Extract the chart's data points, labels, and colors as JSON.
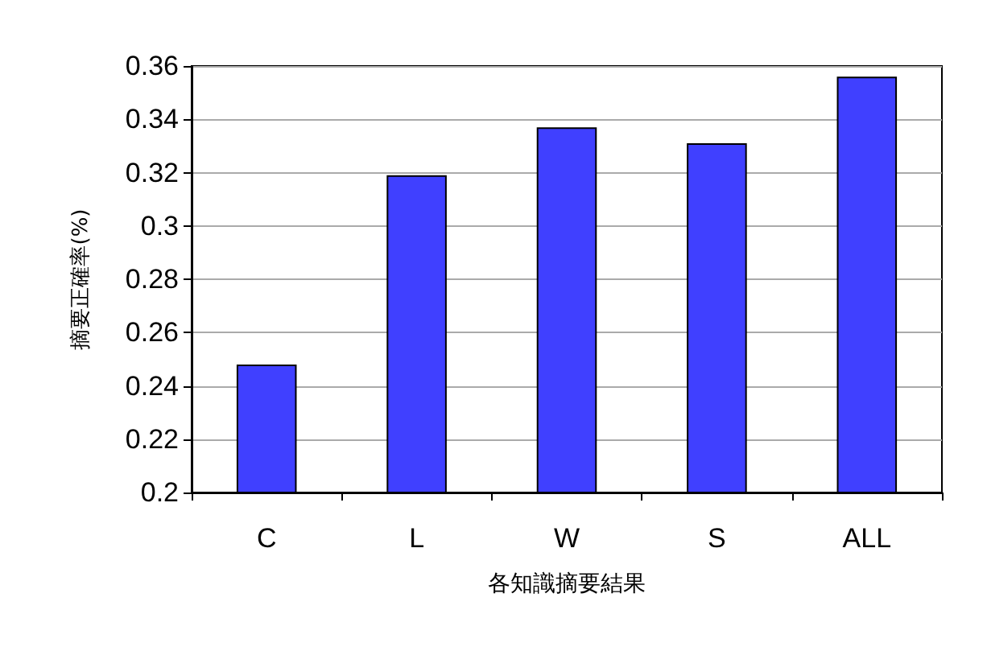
{
  "chart_data": {
    "type": "bar",
    "xlabel": "各知識摘要結果",
    "ylabel": "摘要正確率(%)",
    "categories": [
      "C",
      "L",
      "W",
      "S",
      "ALL"
    ],
    "values": [
      0.248,
      0.319,
      0.337,
      0.331,
      0.356
    ],
    "color": "#4040ff",
    "ylim": [
      0.2,
      0.36
    ],
    "yticks": [
      0.2,
      0.22,
      0.24,
      0.26,
      0.28,
      0.3,
      0.32,
      0.34,
      0.36
    ],
    "grid": "y"
  }
}
